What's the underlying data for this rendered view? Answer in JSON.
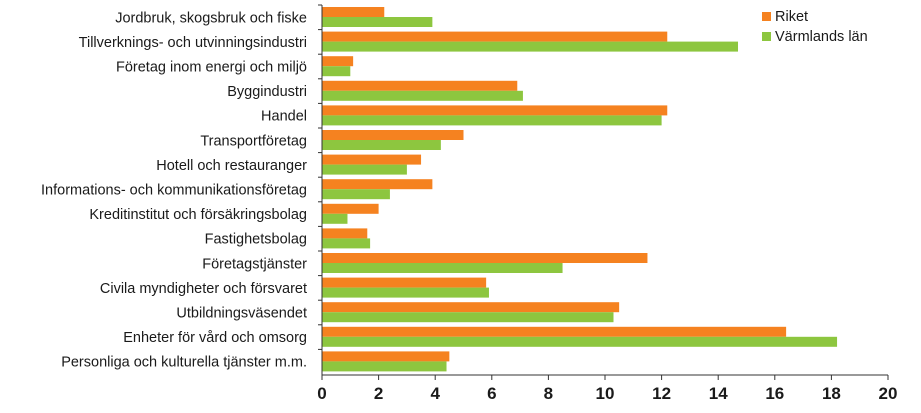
{
  "chart_data": {
    "type": "bar",
    "orientation": "horizontal",
    "categories": [
      "Jordbruk, skogsbruk och fiske",
      "Tillverknings- och utvinningsindustri",
      "Företag inom energi och miljö",
      "Byggindustri",
      "Handel",
      "Transportföretag",
      "Hotell och restauranger",
      "Informations- och kommunikationsföretag",
      "Kreditinstitut och försäkringsbolag",
      "Fastighetsbolag",
      "Företagstjänster",
      "Civila myndigheter och försvaret",
      "Utbildningsväsendet",
      "Enheter för vård och omsorg",
      "Personliga och kulturella tjänster m.m."
    ],
    "series": [
      {
        "name": "Riket",
        "color": "#f58220",
        "values": [
          2.2,
          12.2,
          1.1,
          6.9,
          12.2,
          5.0,
          3.5,
          3.9,
          2.0,
          1.6,
          11.5,
          5.8,
          10.5,
          16.4,
          4.5
        ]
      },
      {
        "name": "Värmlands län",
        "color": "#8dc63f",
        "values": [
          3.9,
          14.7,
          1.0,
          7.1,
          12.0,
          4.2,
          3.0,
          2.4,
          0.9,
          1.7,
          8.5,
          5.9,
          10.3,
          18.2,
          4.4
        ]
      }
    ],
    "xlim": [
      0,
      20
    ],
    "x_ticks": [
      0,
      2,
      4,
      6,
      8,
      10,
      12,
      14,
      16,
      18,
      20
    ],
    "grid": false,
    "legend_position": "top-right",
    "title": "",
    "xlabel": "",
    "ylabel": ""
  }
}
